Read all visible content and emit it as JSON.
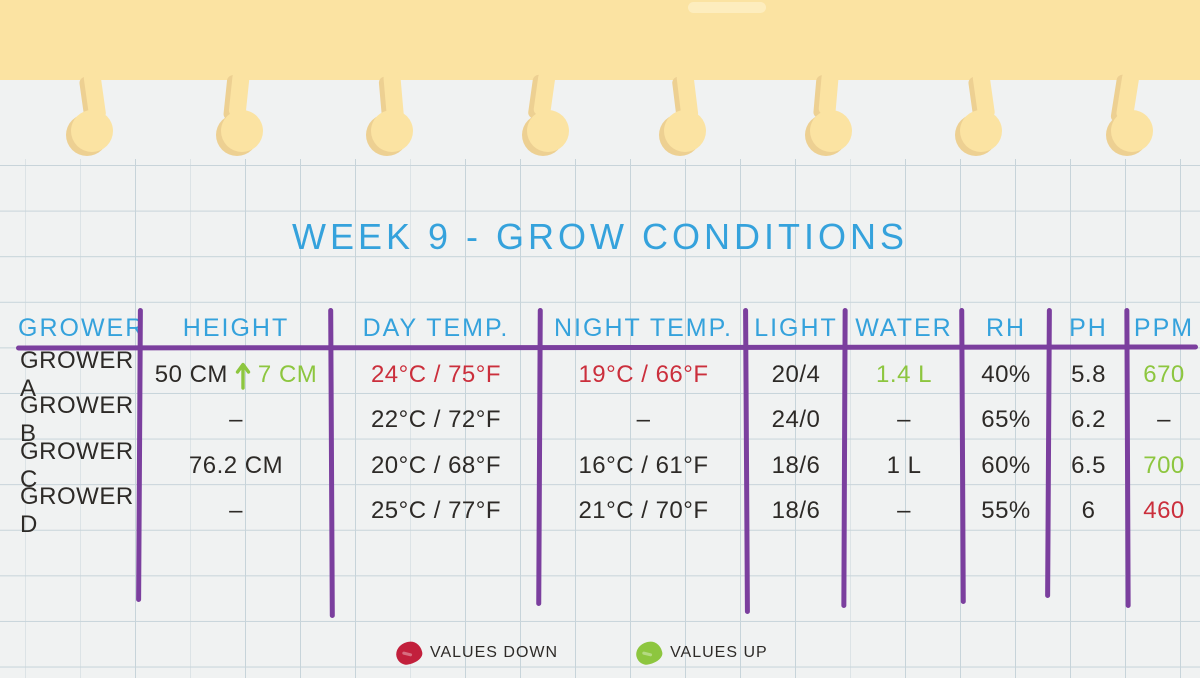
{
  "title": "WEEK 9 - GROW CONDITIONS",
  "colors": {
    "paper": "#F0F2F2",
    "grid_line": "#C7D4DA",
    "banner_yellow": "#FBE3A2",
    "banner_shadow": "#EDD092",
    "header_blue": "#35A2DC",
    "line_purple": "#7B3F9E",
    "ink": "#2D2A27",
    "value_down_red": "#CB2F3C",
    "value_up_green": "#8DC63F"
  },
  "table": {
    "columns": [
      "GROWER",
      "HEIGHT",
      "DAY TEMP.",
      "NIGHT TEMP.",
      "LIGHT",
      "WATER",
      "RH",
      "PH",
      "PPM"
    ],
    "rows": [
      {
        "cells": [
          "GROWER A",
          {
            "parts": [
              {
                "text": "50 CM",
                "color": "default"
              },
              {
                "icon": "arrow-up-icon",
                "color": "green"
              },
              {
                "text": "7 CM",
                "color": "green"
              }
            ]
          },
          {
            "text": "24°C / 75°F",
            "color": "red"
          },
          {
            "text": "19°C / 66°F",
            "color": "red"
          },
          "20/4",
          {
            "text": "1.4 L",
            "color": "green"
          },
          "40%",
          "5.8",
          {
            "text": "670",
            "color": "green"
          }
        ]
      },
      {
        "cells": [
          "GROWER B",
          "–",
          "22°C / 72°F",
          "–",
          "24/0",
          "–",
          "65%",
          "6.2",
          "–"
        ]
      },
      {
        "cells": [
          "GROWER C",
          "76.2 CM",
          "20°C / 68°F",
          "16°C / 61°F",
          "18/6",
          "1 L",
          "60%",
          "6.5",
          {
            "text": "700",
            "color": "green"
          }
        ]
      },
      {
        "cells": [
          "GROWER D",
          "–",
          "25°C / 77°F",
          "21°C / 70°F",
          "18/6",
          "–",
          "55%",
          "6",
          {
            "text": "460",
            "color": "red"
          }
        ]
      }
    ]
  },
  "legend": {
    "down_label": "VALUES DOWN",
    "up_label": "VALUES UP"
  },
  "chart_data": {
    "type": "table",
    "title": "WEEK 9 - GROW CONDITIONS",
    "columns": [
      "GROWER",
      "HEIGHT",
      "DAY TEMP.",
      "NIGHT TEMP.",
      "LIGHT",
      "WATER",
      "RH",
      "PH",
      "PPM"
    ],
    "rows": [
      [
        "GROWER A",
        "50 CM ↑ 7 CM",
        "24°C / 75°F",
        "19°C / 66°F",
        "20/4",
        "1.4 L",
        "40%",
        "5.8",
        "670"
      ],
      [
        "GROWER B",
        "–",
        "22°C / 72°F",
        "–",
        "24/0",
        "–",
        "65%",
        "6.2",
        "–"
      ],
      [
        "GROWER C",
        "76.2 CM",
        "20°C / 68°F",
        "16°C / 61°F",
        "18/6",
        "1 L",
        "60%",
        "6.5",
        "700"
      ],
      [
        "GROWER D",
        "–",
        "25°C / 77°F",
        "21°C / 70°F",
        "18/6",
        "–",
        "55%",
        "6",
        "460"
      ]
    ],
    "legend": [
      "VALUES DOWN",
      "VALUES UP"
    ],
    "color_coding": {
      "red": "values down",
      "green": "values up",
      "red_cells": [
        [
          "GROWER A",
          "DAY TEMP."
        ],
        [
          "GROWER A",
          "NIGHT TEMP."
        ],
        [
          "GROWER D",
          "PPM"
        ]
      ],
      "green_cells": [
        [
          "GROWER A",
          "HEIGHT +7 CM"
        ],
        [
          "GROWER A",
          "WATER"
        ],
        [
          "GROWER A",
          "PPM"
        ],
        [
          "GROWER C",
          "PPM"
        ]
      ]
    }
  }
}
